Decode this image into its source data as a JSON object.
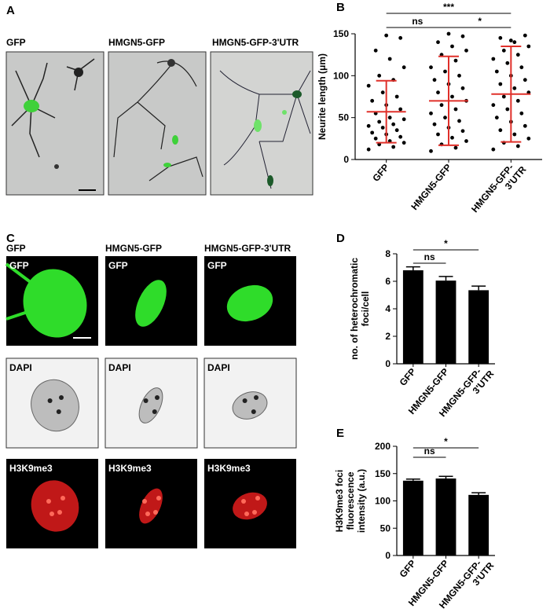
{
  "panel_labels": [
    "A",
    "B",
    "C",
    "D",
    "E"
  ],
  "panel_a": {
    "titles": [
      "GFP",
      "HMGN5-GFP",
      "HMGN5-GFP-3'UTR"
    ]
  },
  "panel_c": {
    "titles": [
      "GFP",
      "HMGN5-GFP",
      "HMGN5-GFP-3'UTR"
    ],
    "row_labels": [
      "GFP",
      "DAPI",
      "H3K9me3"
    ]
  },
  "chart_data": [
    {
      "type": "dotplot",
      "ylabel": [
        "Neurite length (μm)"
      ],
      "categories": [
        [
          "GFP"
        ],
        [
          "HMGN5-GFP"
        ],
        [
          "HMGN5-GFP-",
          "3'UTR"
        ]
      ],
      "points": [
        [
          12,
          15,
          18,
          20,
          22,
          25,
          27,
          30,
          32,
          35,
          38,
          40,
          42,
          45,
          48,
          50,
          55,
          60,
          65,
          70,
          75,
          80,
          88,
          95,
          100,
          110,
          120,
          130,
          145,
          148
        ],
        [
          10,
          14,
          18,
          22,
          26,
          30,
          34,
          38,
          42,
          46,
          50,
          55,
          60,
          65,
          70,
          75,
          80,
          85,
          90,
          95,
          100,
          105,
          110,
          118,
          125,
          130,
          135,
          140,
          147,
          150
        ],
        [
          12,
          16,
          20,
          25,
          30,
          35,
          40,
          45,
          50,
          55,
          60,
          65,
          70,
          75,
          80,
          85,
          90,
          95,
          100,
          105,
          110,
          115,
          120,
          125,
          130,
          135,
          140,
          145,
          148,
          142
        ]
      ],
      "means": [
        57,
        70,
        78
      ],
      "sd": [
        37,
        53,
        57
      ],
      "color": "#000000",
      "error_color": "#e0302a",
      "ylim": [
        0,
        150
      ],
      "yticks": [
        0,
        50,
        100,
        150
      ],
      "annotations": [
        "ns",
        "***",
        "*"
      ]
    },
    {
      "type": "bar",
      "ylabel": [
        "no. of heterochromatic",
        "foci/cell"
      ],
      "categories": [
        [
          "GFP"
        ],
        [
          "HMGN5-GFP"
        ],
        [
          "HMGN5-GFP-",
          "3'UTR"
        ]
      ],
      "values": [
        6.8,
        6.05,
        5.35
      ],
      "errors": [
        0.25,
        0.3,
        0.3
      ],
      "color": "#000000",
      "ylim": [
        0,
        8
      ],
      "yticks": [
        0,
        2,
        4,
        6,
        8
      ],
      "annotations": [
        "ns",
        "*"
      ]
    },
    {
      "type": "bar",
      "ylabel": [
        "H3K9me3 foci",
        "fluorescence",
        "intensity (a.u.)"
      ],
      "categories": [
        [
          "GFP"
        ],
        [
          "HMGN5-GFP"
        ],
        [
          "HMGN5-GFP-",
          "3'UTR"
        ]
      ],
      "values": [
        137,
        141,
        111
      ],
      "errors": [
        3,
        4,
        4
      ],
      "color": "#000000",
      "ylim": [
        0,
        200
      ],
      "yticks": [
        0,
        50,
        100,
        150,
        200
      ],
      "annotations": [
        "ns",
        "*"
      ]
    }
  ]
}
